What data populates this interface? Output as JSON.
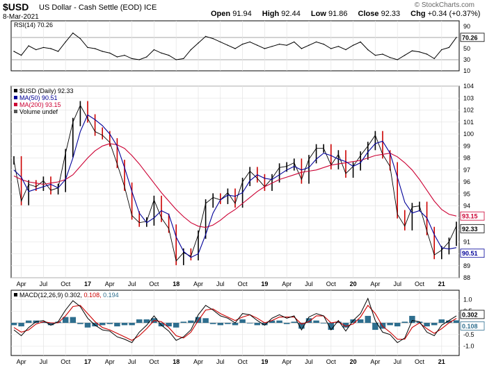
{
  "header": {
    "ticker": "$USD",
    "name": "US Dollar - Cash Settle (EOD) ICE",
    "date": "8-Mar-2021",
    "copyright": "© StockCharts.com",
    "open_label": "Open",
    "open": "91.94",
    "high_label": "High",
    "high": "92.44",
    "low_label": "Low",
    "low": "91.86",
    "close_label": "Close",
    "close": "92.33",
    "chg_label": "Chg",
    "chg": "+0.34 (+0.37%)"
  },
  "colors": {
    "price": "#000000",
    "down": "#cc0000",
    "ma50": "#000099",
    "ma200": "#cc0033",
    "macd_line": "#000000",
    "signal_line": "#cc0000",
    "histogram": "#2e6e8e"
  },
  "chart_data": [
    {
      "type": "line",
      "panel": "RSI",
      "legend": "RSI(14) 70.26",
      "ylim": [
        10,
        100
      ],
      "yticks": [
        "90",
        "70",
        "50",
        "30",
        "10"
      ],
      "guide_levels": [
        70,
        30
      ],
      "last_value": 70.26,
      "last_label": "70.26",
      "x": [
        "2016-03",
        "2016-04",
        "2016-05",
        "2016-06",
        "2016-07",
        "2016-08",
        "2016-09",
        "2016-10",
        "2016-11",
        "2016-12",
        "2017-01",
        "2017-02",
        "2017-03",
        "2017-04",
        "2017-05",
        "2017-06",
        "2017-07",
        "2017-08",
        "2017-09",
        "2017-10",
        "2017-11",
        "2017-12",
        "2018-01",
        "2018-02",
        "2018-03",
        "2018-04",
        "2018-05",
        "2018-06",
        "2018-07",
        "2018-08",
        "2018-09",
        "2018-10",
        "2018-11",
        "2018-12",
        "2019-01",
        "2019-02",
        "2019-03",
        "2019-04",
        "2019-05",
        "2019-06",
        "2019-07",
        "2019-08",
        "2019-09",
        "2019-10",
        "2019-11",
        "2019-12",
        "2020-01",
        "2020-02",
        "2020-03",
        "2020-04",
        "2020-05",
        "2020-06",
        "2020-07",
        "2020-08",
        "2020-09",
        "2020-10",
        "2020-11",
        "2020-12",
        "2021-01",
        "2021-02",
        "2021-03"
      ],
      "values": [
        45,
        38,
        55,
        48,
        52,
        50,
        45,
        62,
        78,
        68,
        52,
        50,
        45,
        42,
        35,
        38,
        32,
        30,
        35,
        48,
        42,
        38,
        30,
        32,
        48,
        60,
        72,
        68,
        62,
        56,
        50,
        58,
        62,
        56,
        50,
        54,
        58,
        56,
        62,
        50,
        56,
        62,
        58,
        50,
        54,
        48,
        56,
        62,
        48,
        38,
        40,
        34,
        30,
        38,
        46,
        44,
        40,
        32,
        48,
        52,
        70.26
      ]
    },
    {
      "type": "line",
      "panel": "Price",
      "legend": [
        "$USD (Daily) 92.33",
        "MA(50) 90.51",
        "MA(200) 93.15",
        "Volume undef"
      ],
      "ylim": [
        88,
        104
      ],
      "yticks": [
        "104",
        "103",
        "102",
        "101",
        "100",
        "99",
        "98",
        "97",
        "96",
        "95",
        "94",
        "93",
        "92",
        "91",
        "90",
        "89",
        "88"
      ],
      "x_tick_labels": [
        "Apr",
        "Jul",
        "Oct",
        "17",
        "Apr",
        "Jul",
        "Oct",
        "18",
        "Apr",
        "Jul",
        "Oct",
        "19",
        "Apr",
        "Jul",
        "Oct",
        "20",
        "Apr",
        "Jul",
        "Oct",
        "21"
      ],
      "x": [
        "2016-03",
        "2016-04",
        "2016-05",
        "2016-06",
        "2016-07",
        "2016-08",
        "2016-09",
        "2016-10",
        "2016-11",
        "2016-12",
        "2017-01",
        "2017-02",
        "2017-03",
        "2017-04",
        "2017-05",
        "2017-06",
        "2017-07",
        "2017-08",
        "2017-09",
        "2017-10",
        "2017-11",
        "2017-12",
        "2018-01",
        "2018-02",
        "2018-03",
        "2018-04",
        "2018-05",
        "2018-06",
        "2018-07",
        "2018-08",
        "2018-09",
        "2018-10",
        "2018-11",
        "2018-12",
        "2019-01",
        "2019-02",
        "2019-03",
        "2019-04",
        "2019-05",
        "2019-06",
        "2019-07",
        "2019-08",
        "2019-09",
        "2019-10",
        "2019-11",
        "2019-12",
        "2020-01",
        "2020-02",
        "2020-03",
        "2020-04",
        "2020-05",
        "2020-06",
        "2020-07",
        "2020-08",
        "2020-09",
        "2020-10",
        "2020-11",
        "2020-12",
        "2021-01",
        "2021-02",
        "2021-03"
      ],
      "series": [
        {
          "name": "$USD (Daily) 92.33",
          "values": [
            97.8,
            94.4,
            95.8,
            95.6,
            96.1,
            95.3,
            95.5,
            98.4,
            101.0,
            102.4,
            101.3,
            100.2,
            99.9,
            99.3,
            97.5,
            95.6,
            93.2,
            92.6,
            92.7,
            94.5,
            93.0,
            92.1,
            89.4,
            90.1,
            89.8,
            91.6,
            94.2,
            94.7,
            94.5,
            95.1,
            94.2,
            96.0,
            96.9,
            96.3,
            95.6,
            96.3,
            97.2,
            97.3,
            97.6,
            96.2,
            97.9,
            98.8,
            98.8,
            97.4,
            98.3,
            96.7,
            97.3,
            98.2,
            99.0,
            99.9,
            98.3,
            97.3,
            93.3,
            92.3,
            93.9,
            94.0,
            91.9,
            89.9,
            90.3,
            91.0,
            92.33
          ]
        },
        {
          "name": "MA(50) 90.51",
          "values": [
            97.0,
            96.4,
            95.2,
            95.4,
            95.6,
            95.8,
            95.5,
            96.2,
            98.0,
            100.2,
            101.6,
            101.2,
            100.7,
            100.0,
            99.0,
            97.2,
            95.2,
            93.4,
            92.6,
            93.0,
            93.6,
            93.3,
            91.4,
            90.2,
            89.7,
            90.0,
            91.6,
            93.4,
            94.5,
            94.9,
            94.8,
            95.1,
            96.1,
            96.6,
            96.3,
            96.2,
            96.6,
            97.0,
            97.3,
            97.0,
            97.2,
            97.9,
            98.4,
            98.2,
            97.9,
            97.7,
            97.3,
            97.6,
            98.5,
            99.2,
            99.4,
            98.4,
            96.4,
            94.3,
            93.4,
            93.6,
            93.0,
            91.6,
            90.5,
            90.4,
            90.51
          ]
        },
        {
          "name": "MA(200) 93.15",
          "values": [
            96.5,
            96.2,
            96.0,
            95.9,
            95.8,
            95.9,
            96.0,
            96.2,
            96.6,
            97.3,
            98.0,
            98.6,
            99.0,
            99.2,
            99.1,
            98.8,
            98.2,
            97.5,
            96.7,
            95.9,
            95.1,
            94.4,
            93.7,
            93.1,
            92.6,
            92.3,
            92.2,
            92.4,
            92.8,
            93.3,
            93.7,
            94.2,
            94.7,
            95.2,
            95.6,
            95.9,
            96.2,
            96.4,
            96.6,
            96.8,
            96.9,
            97.0,
            97.2,
            97.4,
            97.5,
            97.6,
            97.7,
            97.8,
            98.0,
            98.2,
            98.3,
            98.4,
            98.1,
            97.6,
            97.0,
            96.2,
            95.3,
            94.4,
            93.7,
            93.3,
            93.15
          ]
        }
      ],
      "last_value_labels": [
        "93.15",
        "92.33",
        "90.51"
      ]
    },
    {
      "type": "line",
      "panel": "MACD",
      "legend": [
        "MACD(12,26,9) 0.302,",
        "0.108,",
        "0.194"
      ],
      "ylim": [
        -1.4,
        1.4
      ],
      "yticks": [
        "1.0",
        "0.5",
        "-0.5",
        "-1.0"
      ],
      "x_tick_labels": [
        "Apr",
        "Jul",
        "Oct",
        "17",
        "Apr",
        "Jul",
        "Oct",
        "18",
        "Apr",
        "Jul",
        "Oct",
        "19",
        "Apr",
        "Jul",
        "Oct",
        "20",
        "Apr",
        "Jul",
        "Oct",
        "21"
      ],
      "x": [
        "2016-03",
        "2016-04",
        "2016-05",
        "2016-06",
        "2016-07",
        "2016-08",
        "2016-09",
        "2016-10",
        "2016-11",
        "2016-12",
        "2017-01",
        "2017-02",
        "2017-03",
        "2017-04",
        "2017-05",
        "2017-06",
        "2017-07",
        "2017-08",
        "2017-09",
        "2017-10",
        "2017-11",
        "2017-12",
        "2018-01",
        "2018-02",
        "2018-03",
        "2018-04",
        "2018-05",
        "2018-06",
        "2018-07",
        "2018-08",
        "2018-09",
        "2018-10",
        "2018-11",
        "2018-12",
        "2019-01",
        "2019-02",
        "2019-03",
        "2019-04",
        "2019-05",
        "2019-06",
        "2019-07",
        "2019-08",
        "2019-09",
        "2019-10",
        "2019-11",
        "2019-12",
        "2020-01",
        "2020-02",
        "2020-03",
        "2020-04",
        "2020-05",
        "2020-06",
        "2020-07",
        "2020-08",
        "2020-09",
        "2020-10",
        "2020-11",
        "2020-12",
        "2021-01",
        "2021-02",
        "2021-03"
      ],
      "series": [
        {
          "name": "MACD",
          "values": [
            -0.3,
            -0.55,
            -0.2,
            0.05,
            0.1,
            -0.1,
            0.05,
            0.55,
            0.95,
            0.7,
            0.2,
            -0.1,
            -0.3,
            -0.35,
            -0.6,
            -0.7,
            -0.85,
            -0.4,
            -0.1,
            0.3,
            -0.1,
            -0.35,
            -0.75,
            -0.6,
            -0.3,
            0.35,
            0.75,
            0.55,
            0.3,
            0.2,
            0.0,
            0.4,
            0.35,
            0.1,
            -0.1,
            0.2,
            0.35,
            0.2,
            0.3,
            -0.3,
            0.25,
            0.4,
            0.3,
            -0.3,
            0.1,
            -0.35,
            0.1,
            0.4,
            1.05,
            0.1,
            -0.4,
            -0.5,
            -0.85,
            -0.65,
            0.1,
            0.05,
            -0.4,
            -0.55,
            -0.1,
            0.1,
            0.302
          ]
        },
        {
          "name": "Signal",
          "values": [
            -0.2,
            -0.4,
            -0.3,
            -0.05,
            0.05,
            0.0,
            0.0,
            0.3,
            0.7,
            0.75,
            0.4,
            0.05,
            -0.2,
            -0.3,
            -0.45,
            -0.6,
            -0.75,
            -0.55,
            -0.25,
            0.1,
            0.05,
            -0.2,
            -0.55,
            -0.65,
            -0.4,
            0.1,
            0.55,
            0.6,
            0.4,
            0.25,
            0.1,
            0.25,
            0.35,
            0.2,
            0.0,
            0.1,
            0.25,
            0.25,
            0.25,
            -0.05,
            0.05,
            0.3,
            0.3,
            0.0,
            0.05,
            -0.15,
            -0.05,
            0.25,
            0.75,
            0.4,
            -0.15,
            -0.4,
            -0.7,
            -0.7,
            -0.2,
            0.0,
            -0.25,
            -0.45,
            -0.25,
            0.0,
            0.194
          ]
        },
        {
          "name": "Histogram",
          "values": [
            -0.1,
            -0.15,
            0.1,
            0.1,
            0.05,
            -0.1,
            0.05,
            0.25,
            0.25,
            -0.05,
            -0.2,
            -0.15,
            -0.1,
            -0.05,
            -0.15,
            -0.1,
            -0.1,
            0.15,
            0.15,
            0.2,
            -0.15,
            -0.15,
            -0.2,
            0.05,
            0.1,
            0.25,
            0.2,
            -0.05,
            -0.1,
            -0.05,
            -0.1,
            0.15,
            0.0,
            -0.1,
            -0.1,
            0.1,
            0.1,
            -0.05,
            0.05,
            -0.25,
            0.2,
            0.1,
            0.0,
            -0.3,
            0.05,
            -0.2,
            0.15,
            0.15,
            0.3,
            -0.3,
            -0.25,
            -0.1,
            -0.15,
            0.05,
            0.3,
            0.05,
            -0.15,
            -0.1,
            0.15,
            0.1,
            0.108
          ]
        }
      ],
      "last_value_labels": [
        "0.302",
        "0.108"
      ]
    }
  ]
}
